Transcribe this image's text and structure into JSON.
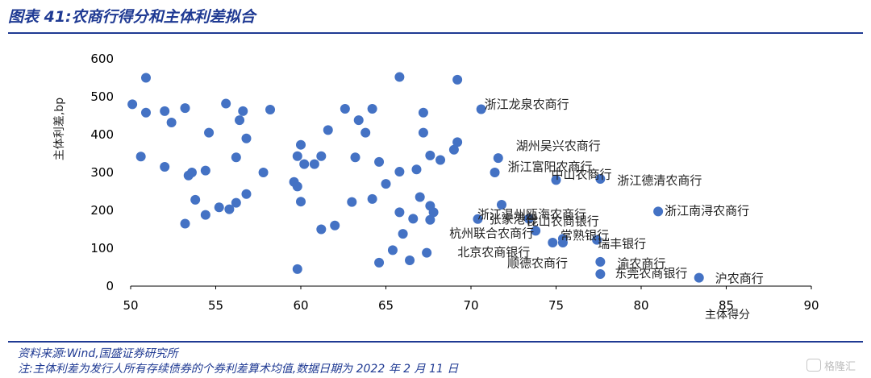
{
  "header": {
    "title": "图表 41:农商行得分和主体利差拟合"
  },
  "footer": {
    "source": "资料来源:Wind,国盛证券研究所",
    "note": "注:主体利差为发行人所有存续债券的个券利差算术均值,数据日期为 2022 年 2 月 11 日"
  },
  "watermark": {
    "icon": "gelonghui-logo-icon",
    "text": "格隆汇"
  },
  "colors": {
    "accent": "#1f3a93",
    "point": "#4472c4",
    "label": "#222222"
  },
  "chart_data": {
    "type": "scatter",
    "title": "",
    "xlabel": "主体得分",
    "ylabel": "主体利差,bp",
    "xlim": [
      50,
      90
    ],
    "ylim": [
      0,
      600
    ],
    "xticks": [
      50,
      55,
      60,
      65,
      70,
      75,
      80,
      85,
      90
    ],
    "yticks": [
      0,
      100,
      200,
      300,
      400,
      500,
      600
    ],
    "grid": false,
    "legend": "none",
    "points": [
      {
        "x": 50.1,
        "y": 480
      },
      {
        "x": 50.6,
        "y": 342
      },
      {
        "x": 50.9,
        "y": 550
      },
      {
        "x": 50.9,
        "y": 458
      },
      {
        "x": 52.0,
        "y": 462
      },
      {
        "x": 52.0,
        "y": 315
      },
      {
        "x": 52.4,
        "y": 432
      },
      {
        "x": 53.2,
        "y": 470
      },
      {
        "x": 53.2,
        "y": 165
      },
      {
        "x": 53.4,
        "y": 292
      },
      {
        "x": 53.6,
        "y": 300
      },
      {
        "x": 53.8,
        "y": 228
      },
      {
        "x": 54.4,
        "y": 305
      },
      {
        "x": 54.4,
        "y": 188
      },
      {
        "x": 54.6,
        "y": 405
      },
      {
        "x": 55.2,
        "y": 208
      },
      {
        "x": 55.6,
        "y": 482
      },
      {
        "x": 55.8,
        "y": 203
      },
      {
        "x": 56.2,
        "y": 340
      },
      {
        "x": 56.2,
        "y": 220
      },
      {
        "x": 56.4,
        "y": 438
      },
      {
        "x": 56.6,
        "y": 462
      },
      {
        "x": 56.8,
        "y": 390
      },
      {
        "x": 56.8,
        "y": 243
      },
      {
        "x": 57.8,
        "y": 300
      },
      {
        "x": 58.2,
        "y": 466
      },
      {
        "x": 59.6,
        "y": 275
      },
      {
        "x": 59.8,
        "y": 263
      },
      {
        "x": 59.8,
        "y": 343
      },
      {
        "x": 59.8,
        "y": 45
      },
      {
        "x": 60.0,
        "y": 373
      },
      {
        "x": 60.0,
        "y": 223
      },
      {
        "x": 60.2,
        "y": 322
      },
      {
        "x": 60.8,
        "y": 322
      },
      {
        "x": 61.2,
        "y": 343
      },
      {
        "x": 61.2,
        "y": 150
      },
      {
        "x": 61.6,
        "y": 412
      },
      {
        "x": 62.0,
        "y": 160
      },
      {
        "x": 62.6,
        "y": 468
      },
      {
        "x": 63.0,
        "y": 222
      },
      {
        "x": 63.2,
        "y": 340
      },
      {
        "x": 63.4,
        "y": 438
      },
      {
        "x": 63.8,
        "y": 405
      },
      {
        "x": 64.2,
        "y": 468
      },
      {
        "x": 64.2,
        "y": 230
      },
      {
        "x": 64.6,
        "y": 328
      },
      {
        "x": 64.6,
        "y": 62
      },
      {
        "x": 65.0,
        "y": 270
      },
      {
        "x": 65.4,
        "y": 95
      },
      {
        "x": 65.8,
        "y": 552
      },
      {
        "x": 65.8,
        "y": 302
      },
      {
        "x": 65.8,
        "y": 195
      },
      {
        "x": 66.0,
        "y": 138
      },
      {
        "x": 66.4,
        "y": 68
      },
      {
        "x": 66.6,
        "y": 178
      },
      {
        "x": 66.8,
        "y": 308
      },
      {
        "x": 67.0,
        "y": 235
      },
      {
        "x": 67.2,
        "y": 458
      },
      {
        "x": 67.2,
        "y": 405
      },
      {
        "x": 67.4,
        "y": 88
      },
      {
        "x": 67.6,
        "y": 345
      },
      {
        "x": 67.6,
        "y": 212
      },
      {
        "x": 67.6,
        "y": 175
      },
      {
        "x": 67.8,
        "y": 195
      },
      {
        "x": 68.2,
        "y": 333
      },
      {
        "x": 69.0,
        "y": 360
      },
      {
        "x": 69.2,
        "y": 545
      },
      {
        "x": 69.2,
        "y": 380
      },
      {
        "x": 70.4,
        "y": 177,
        "label": "张家港行"
      },
      {
        "x": 70.6,
        "y": 467,
        "label": "浙江龙泉农商行"
      },
      {
        "x": 71.4,
        "y": 300,
        "label": "浙江富阳农商行"
      },
      {
        "x": 71.6,
        "y": 338,
        "label": "湖州吴兴农商行"
      },
      {
        "x": 71.8,
        "y": 215,
        "label": "浙江温州瓯海农商行"
      },
      {
        "x": 73.4,
        "y": 178,
        "label": "昆山农商银行"
      },
      {
        "x": 73.8,
        "y": 146,
        "label": "杭州联合农商行"
      },
      {
        "x": 74.8,
        "y": 115,
        "label": "北京农商银行"
      },
      {
        "x": 75.0,
        "y": 280,
        "label": "中山农商行"
      },
      {
        "x": 75.4,
        "y": 125,
        "label": "顺德农商行"
      },
      {
        "x": 75.4,
        "y": 115,
        "label": "常熟银行"
      },
      {
        "x": 77.4,
        "y": 122,
        "label": "瑞丰银行"
      },
      {
        "x": 77.6,
        "y": 283,
        "label": "浙江德清农商行"
      },
      {
        "x": 77.6,
        "y": 64,
        "label": "渝农商行"
      },
      {
        "x": 77.6,
        "y": 32,
        "label": "东莞农商银行"
      },
      {
        "x": 81.0,
        "y": 197,
        "label": "浙江南浔农商行"
      },
      {
        "x": 83.4,
        "y": 22,
        "label": "沪农商行"
      }
    ]
  }
}
